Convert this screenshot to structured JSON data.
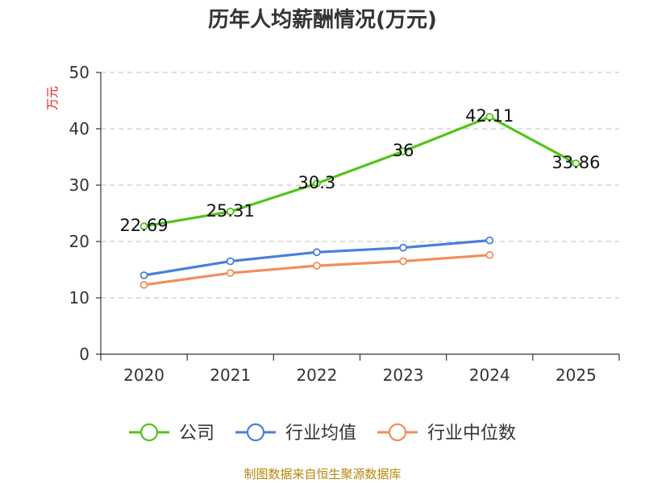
{
  "chart_data": {
    "type": "line",
    "title": "历年人均薪酬情况(万元)",
    "ylabel": "万元",
    "xlabel": "",
    "categories": [
      "2020",
      "2021",
      "2022",
      "2023",
      "2024",
      "2025"
    ],
    "ylim": [
      0,
      50
    ],
    "yticks": [
      0,
      10,
      20,
      30,
      40,
      50
    ],
    "grid": true,
    "legend_position": "bottom",
    "series": [
      {
        "name": "公司",
        "color": "#52c41a",
        "values": [
          22.69,
          25.31,
          30.3,
          36,
          42.11,
          33.86
        ],
        "labels": [
          "22.69",
          "25.31",
          "30.3",
          "36",
          "42.11",
          "33.86"
        ]
      },
      {
        "name": "行业均值",
        "color": "#4a7fd9",
        "values": [
          14.0,
          16.5,
          18.1,
          18.9,
          20.2,
          null
        ]
      },
      {
        "name": "行业中位数",
        "color": "#f28e5b",
        "values": [
          12.3,
          14.4,
          15.7,
          16.5,
          17.6,
          null
        ]
      }
    ]
  },
  "source": "制图数据来自恒生聚源数据库"
}
